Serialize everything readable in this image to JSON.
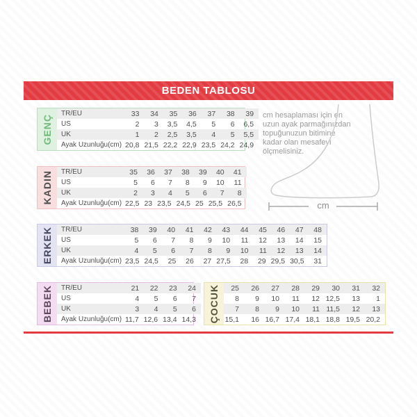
{
  "title": "BEDEN TABLOSU",
  "accent_color": "#e23b41",
  "row_labels": [
    "TR/EU",
    "US",
    "UK",
    "Ayak Uzunluğu(cm)"
  ],
  "tables": [
    {
      "id": "genc",
      "label": "GENÇ",
      "has_row_labels": true,
      "colors": {
        "border": "#badfc0",
        "band": "#dff2e2",
        "label": "#72b87b"
      },
      "rows": [
        [
          "33",
          "34",
          "35",
          "36",
          "37",
          "38",
          "39"
        ],
        [
          "2",
          "3",
          "3,5",
          "4,5",
          "5",
          "6",
          "6,5"
        ],
        [
          "1",
          "2",
          "2,5",
          "3,5",
          "4",
          "5",
          "5,5"
        ],
        [
          "20,8",
          "21,5",
          "22,2",
          "22,9",
          "23,5",
          "24,2",
          "24,9"
        ]
      ]
    },
    {
      "id": "kadin",
      "label": "KADIN",
      "has_row_labels": true,
      "colors": {
        "border": "#f2bfc3",
        "band": "#f9dee0",
        "label": "#4d4d4d"
      },
      "rows": [
        [
          "35",
          "36",
          "37",
          "38",
          "39",
          "40",
          "41"
        ],
        [
          "5",
          "6",
          "7",
          "8",
          "9",
          "10",
          "11"
        ],
        [
          "2",
          "3",
          "4",
          "5",
          "6",
          "7",
          "8"
        ],
        [
          "22,5",
          "23",
          "23,5",
          "24,5",
          "25",
          "25,5",
          "26,5"
        ]
      ]
    },
    {
      "id": "erkek",
      "label": "ERKEK",
      "has_row_labels": true,
      "colors": {
        "border": "#c9c9e8",
        "band": "#e3e3f3",
        "label": "#47475f"
      },
      "rows": [
        [
          "38",
          "39",
          "40",
          "41",
          "42",
          "43",
          "44",
          "45",
          "46",
          "47",
          "48"
        ],
        [
          "5",
          "6",
          "7",
          "8",
          "9",
          "10",
          "11",
          "12",
          "13",
          "14",
          "15"
        ],
        [
          "4",
          "5",
          "6",
          "7",
          "8",
          "9",
          "10",
          "11",
          "12",
          "13",
          "14"
        ],
        [
          "23,5",
          "24,5",
          "25",
          "26",
          "27",
          "27,5",
          "28",
          "29",
          "29,5",
          "30,5",
          "31"
        ]
      ]
    },
    {
      "id": "bebek",
      "label": "BEBEK",
      "has_row_labels": true,
      "colors": {
        "border": "#e3bce0",
        "band": "#f4ddf2",
        "label": "#5c485c"
      },
      "rows": [
        [
          "21",
          "22",
          "23",
          "24"
        ],
        [
          "4",
          "5",
          "6",
          "7"
        ],
        [
          "3",
          "4",
          "5",
          "6"
        ],
        [
          "11,7",
          "12,6",
          "13,4",
          "14,3"
        ]
      ]
    },
    {
      "id": "cocuk",
      "label": "ÇOCUK",
      "has_row_labels": false,
      "colors": {
        "border": "#e7e3ab",
        "band": "#f6f3d9",
        "label": "#52523b"
      },
      "rows": [
        [
          "25",
          "26",
          "27",
          "28",
          "29",
          "30",
          "31",
          "32"
        ],
        [
          "8",
          "9",
          "10",
          "11",
          "12",
          "12,5",
          "13",
          "1"
        ],
        [
          "7",
          "8",
          "9",
          "10",
          "11",
          "11,5",
          "12",
          "13"
        ],
        [
          "15,1",
          "16",
          "16,7",
          "17,4",
          "18,1",
          "18,8",
          "19,5",
          "20,2"
        ]
      ]
    }
  ],
  "info": {
    "lines": [
      "cm hesaplaması için en",
      "uzun ayak parmağınızdan",
      "topuğunuzun bitimine",
      "kadar olan mesafeyi",
      "ölçmelisiniz."
    ]
  },
  "foot": {
    "cm_label": "cm"
  }
}
